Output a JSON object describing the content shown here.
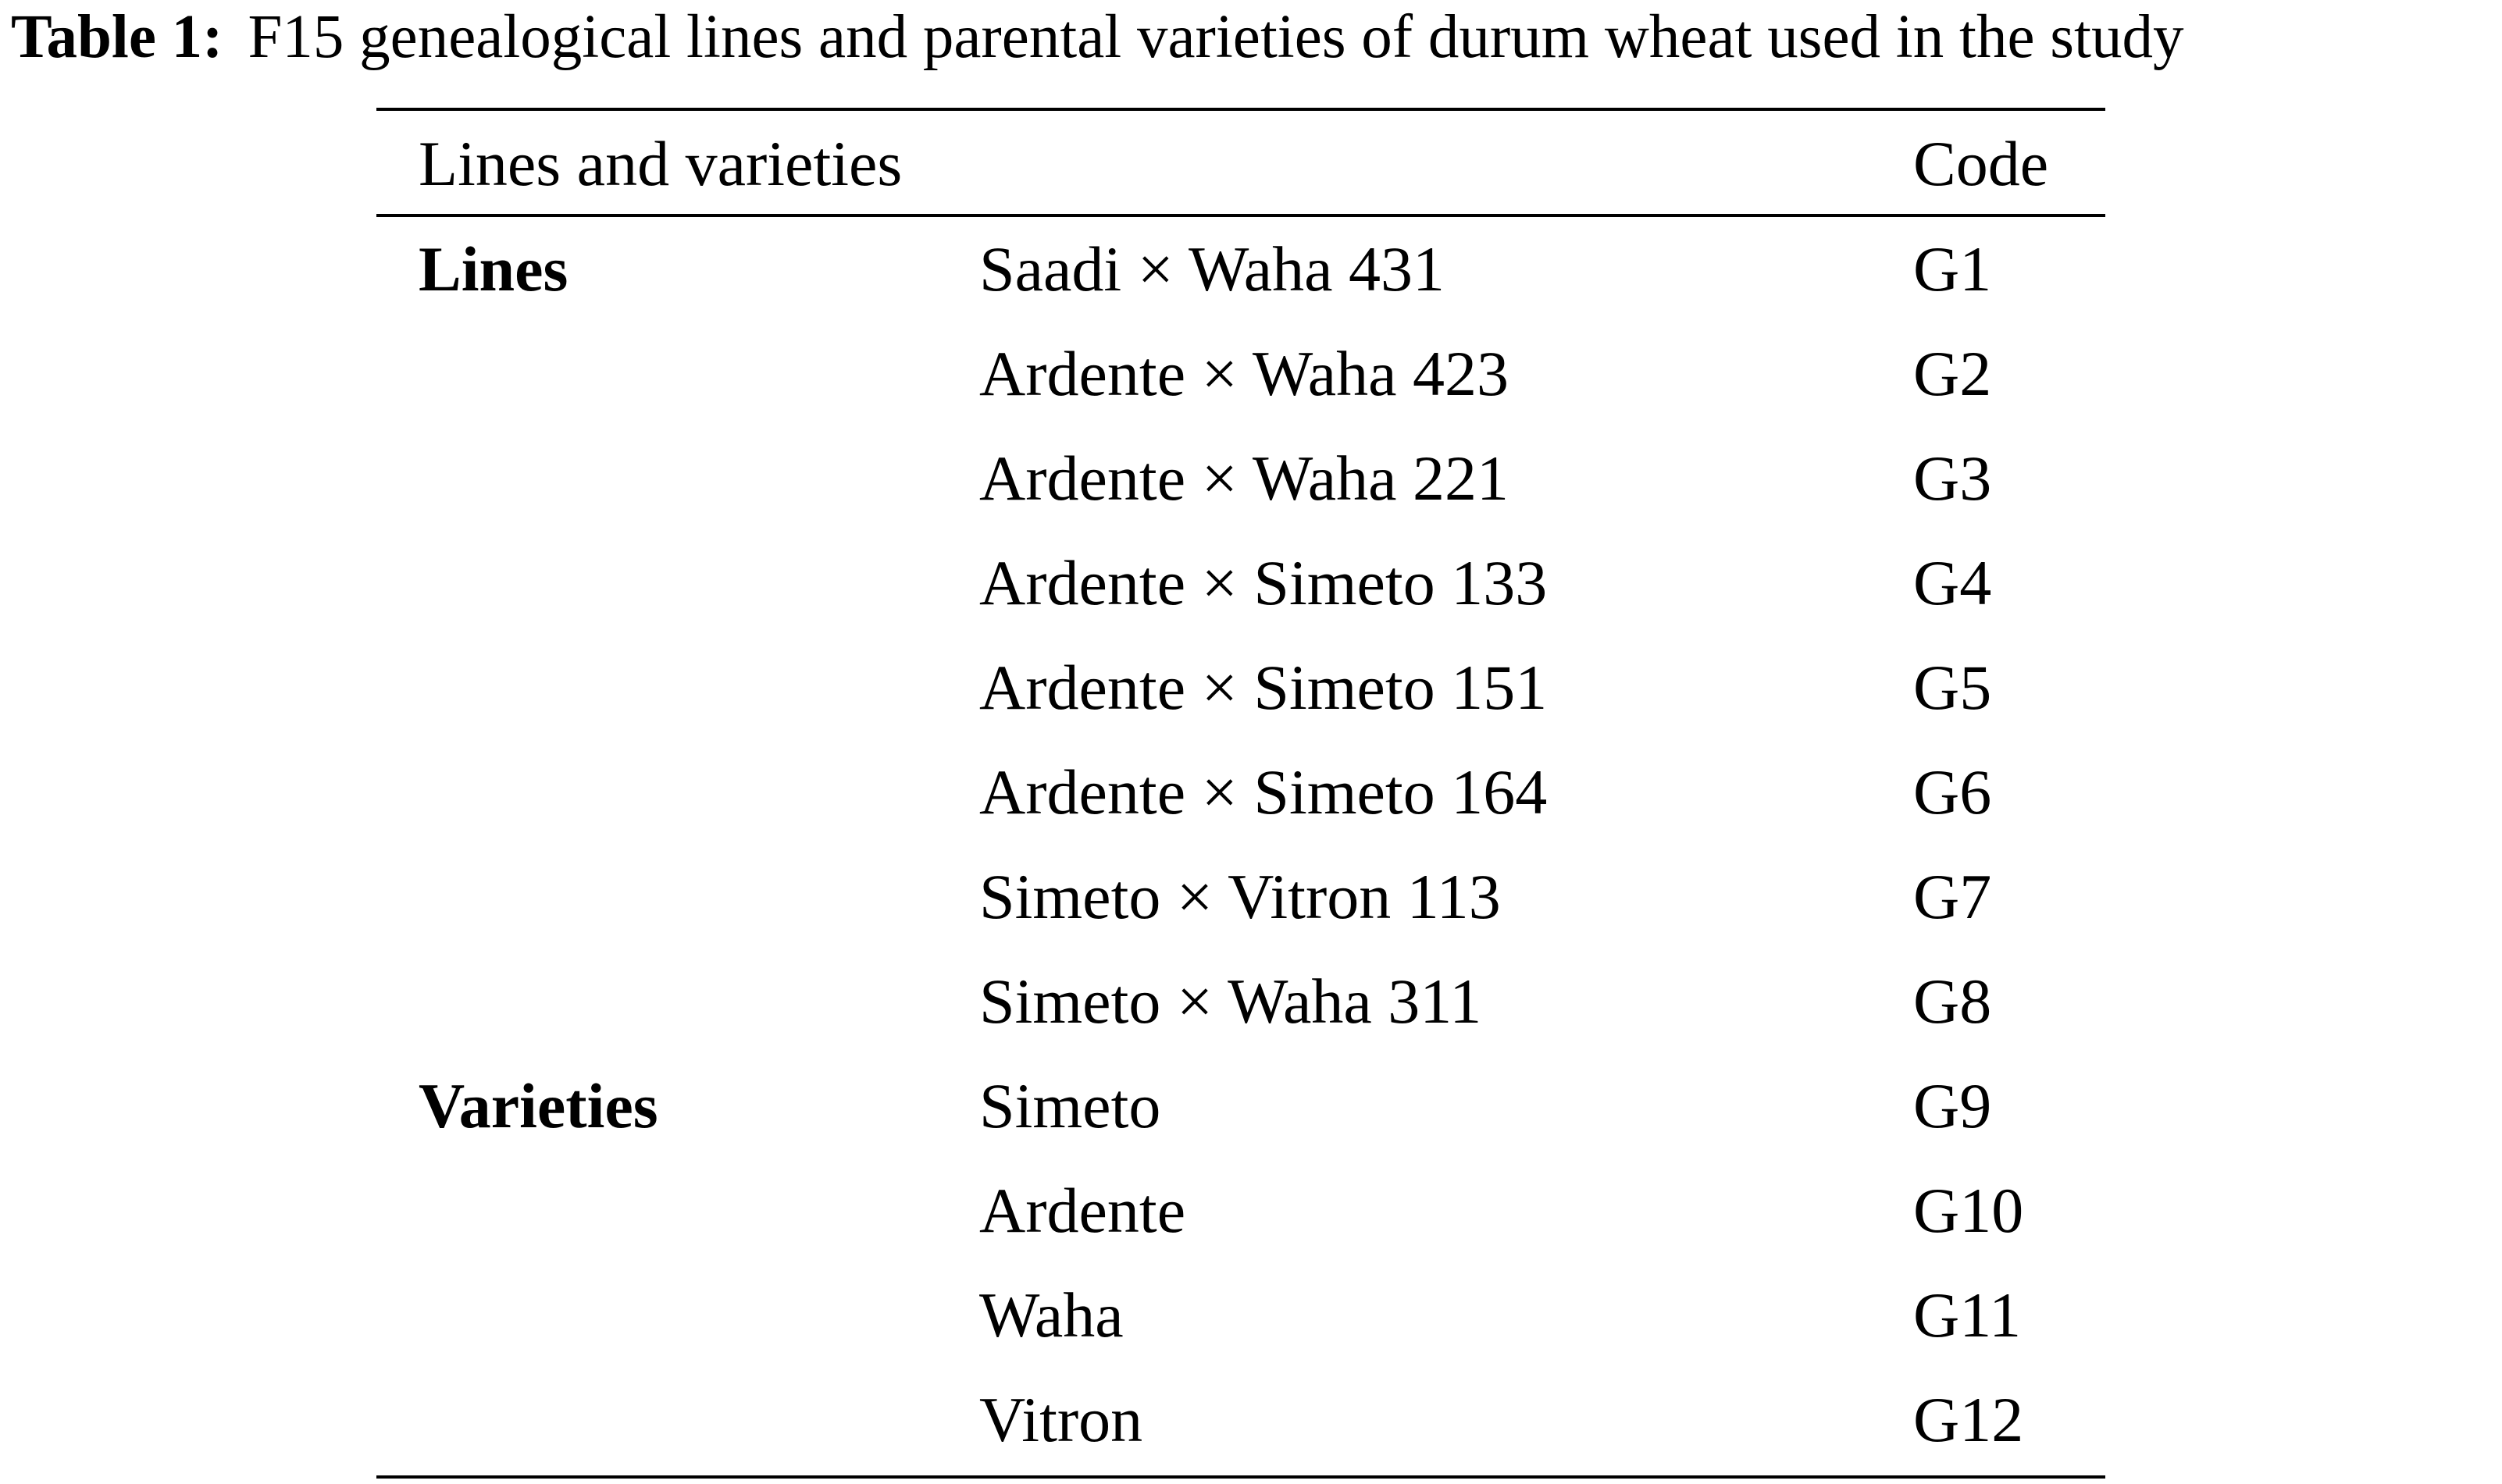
{
  "caption": {
    "label": "Table 1:",
    "text": "F15 genealogical lines and parental varieties of durum wheat used in the study"
  },
  "table": {
    "headers": {
      "lines_and_varieties": "Lines and varieties",
      "code": "Code"
    },
    "rows": [
      {
        "group": "Lines",
        "name": "Saadi × Waha 431",
        "code": "G1"
      },
      {
        "group": "",
        "name": "Ardente × Waha 423",
        "code": "G2"
      },
      {
        "group": "",
        "name": "Ardente × Waha 221",
        "code": "G3"
      },
      {
        "group": "",
        "name": "Ardente × Simeto 133",
        "code": "G4"
      },
      {
        "group": "",
        "name": "Ardente × Simeto 151",
        "code": "G5"
      },
      {
        "group": "",
        "name": "Ardente × Simeto 164",
        "code": "G6"
      },
      {
        "group": "",
        "name": "Simeto × Vitron 113",
        "code": "G7"
      },
      {
        "group": "",
        "name": "Simeto × Waha 311",
        "code": "G8"
      },
      {
        "group": "Varieties",
        "name": "Simeto",
        "code": "G9"
      },
      {
        "group": "",
        "name": "Ardente",
        "code": "G10"
      },
      {
        "group": "",
        "name": "Waha",
        "code": "G11"
      },
      {
        "group": "",
        "name": "Vitron",
        "code": "G12"
      }
    ]
  }
}
